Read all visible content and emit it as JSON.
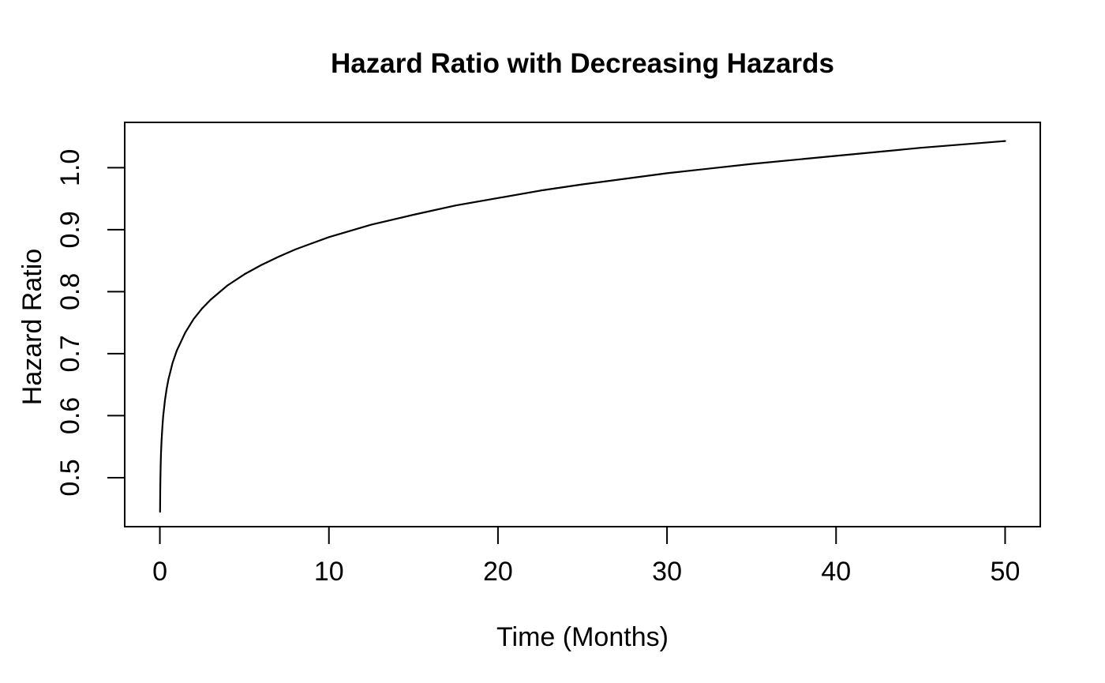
{
  "figure": {
    "background": "#ffffff"
  },
  "chart_data": {
    "type": "line",
    "title": "Hazard Ratio with Decreasing Hazards",
    "xlabel": "Time (Months)",
    "ylabel": "Hazard Ratio",
    "x_ticks": [
      "0",
      "10",
      "20",
      "30",
      "40",
      "50"
    ],
    "y_ticks": [
      "0.5",
      "0.6",
      "0.7",
      "0.8",
      "0.9",
      "1.0"
    ],
    "xlim": [
      -2.08,
      52.08
    ],
    "ylim": [
      0.421,
      1.073
    ],
    "grid": false,
    "legend_position": "none",
    "background_color": "#ffffff",
    "line_color": "#000000",
    "axis_color": "#000000",
    "series": [
      {
        "name": "hazard_ratio",
        "x": [
          0.01,
          0.02,
          0.03,
          0.05,
          0.07,
          0.1,
          0.15,
          0.2,
          0.3,
          0.4,
          0.5,
          0.75,
          1,
          1.5,
          2,
          2.5,
          3,
          4,
          5,
          6,
          7,
          8,
          9,
          10,
          12.5,
          15,
          17.5,
          20,
          22.5,
          25,
          30,
          35,
          40,
          45,
          50
        ],
        "y": [
          0.445,
          0.477,
          0.496,
          0.522,
          0.54,
          0.56,
          0.583,
          0.6,
          0.625,
          0.643,
          0.658,
          0.685,
          0.705,
          0.734,
          0.756,
          0.773,
          0.787,
          0.81,
          0.828,
          0.843,
          0.856,
          0.868,
          0.878,
          0.888,
          0.908,
          0.924,
          0.939,
          0.951,
          0.963,
          0.973,
          0.991,
          1.006,
          1.019,
          1.032,
          1.043
        ]
      }
    ]
  }
}
